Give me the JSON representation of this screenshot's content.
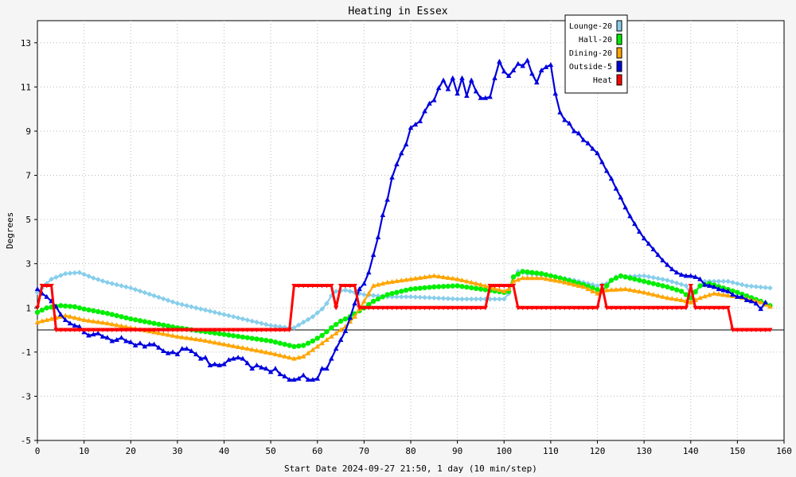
{
  "chart_data": {
    "type": "line",
    "title": "Heating in Essex",
    "xlabel": "Start Date 2024-09-27 21:50, 1 day (10 min/step)",
    "ylabel": "Degrees",
    "xlim": [
      0,
      160
    ],
    "ylim": [
      -5,
      14
    ],
    "x_ticks": [
      0,
      10,
      20,
      30,
      40,
      50,
      60,
      70,
      80,
      90,
      100,
      110,
      120,
      130,
      140,
      150,
      160
    ],
    "y_ticks": [
      -5,
      -3,
      -1,
      1,
      3,
      5,
      7,
      9,
      11,
      13
    ],
    "grid": true,
    "legend_position": "top-right",
    "baseline_y": 0,
    "series": [
      {
        "name": "Lounge-20",
        "color": "#87ceeb",
        "marker": "diamond",
        "points": [
          [
            0,
            1.7
          ],
          [
            3,
            2.3
          ],
          [
            6,
            2.55
          ],
          [
            9,
            2.6
          ],
          [
            12,
            2.35
          ],
          [
            15,
            2.15
          ],
          [
            20,
            1.9
          ],
          [
            25,
            1.55
          ],
          [
            30,
            1.2
          ],
          [
            35,
            0.95
          ],
          [
            40,
            0.7
          ],
          [
            45,
            0.45
          ],
          [
            50,
            0.2
          ],
          [
            54,
            0.1
          ],
          [
            55,
            0.1
          ],
          [
            57,
            0.35
          ],
          [
            59,
            0.6
          ],
          [
            61,
            0.95
          ],
          [
            62,
            1.2
          ],
          [
            63,
            1.55
          ],
          [
            64,
            1.75
          ],
          [
            66,
            1.8
          ],
          [
            68,
            1.7
          ],
          [
            70,
            1.6
          ],
          [
            75,
            1.5
          ],
          [
            80,
            1.5
          ],
          [
            85,
            1.45
          ],
          [
            90,
            1.4
          ],
          [
            95,
            1.4
          ],
          [
            100,
            1.4
          ],
          [
            101,
            1.65
          ],
          [
            102,
            2.35
          ],
          [
            103,
            2.65
          ],
          [
            105,
            2.55
          ],
          [
            110,
            2.45
          ],
          [
            115,
            2.25
          ],
          [
            120,
            2.0
          ],
          [
            122,
            2.1
          ],
          [
            124,
            2.4
          ],
          [
            130,
            2.45
          ],
          [
            135,
            2.25
          ],
          [
            139,
            2.0
          ],
          [
            140,
            1.55
          ],
          [
            143,
            2.2
          ],
          [
            148,
            2.2
          ],
          [
            152,
            2.0
          ],
          [
            157,
            1.9
          ]
        ]
      },
      {
        "name": "Hall-20",
        "color": "#00ee00",
        "marker": "circle",
        "points": [
          [
            0,
            0.8
          ],
          [
            2,
            1.0
          ],
          [
            5,
            1.1
          ],
          [
            8,
            1.05
          ],
          [
            10,
            0.95
          ],
          [
            15,
            0.75
          ],
          [
            20,
            0.5
          ],
          [
            25,
            0.3
          ],
          [
            30,
            0.1
          ],
          [
            35,
            -0.05
          ],
          [
            40,
            -0.2
          ],
          [
            45,
            -0.35
          ],
          [
            50,
            -0.5
          ],
          [
            53,
            -0.65
          ],
          [
            55,
            -0.75
          ],
          [
            57,
            -0.7
          ],
          [
            59,
            -0.5
          ],
          [
            61,
            -0.25
          ],
          [
            63,
            0.1
          ],
          [
            65,
            0.4
          ],
          [
            67,
            0.6
          ],
          [
            70,
            1.0
          ],
          [
            72,
            1.3
          ],
          [
            75,
            1.6
          ],
          [
            80,
            1.85
          ],
          [
            85,
            1.95
          ],
          [
            90,
            2.0
          ],
          [
            95,
            1.85
          ],
          [
            100,
            1.7
          ],
          [
            101,
            1.75
          ],
          [
            102,
            2.4
          ],
          [
            104,
            2.65
          ],
          [
            108,
            2.55
          ],
          [
            112,
            2.35
          ],
          [
            117,
            2.05
          ],
          [
            121,
            1.75
          ],
          [
            123,
            2.25
          ],
          [
            125,
            2.45
          ],
          [
            130,
            2.2
          ],
          [
            135,
            1.95
          ],
          [
            138,
            1.75
          ],
          [
            140,
            1.45
          ],
          [
            142,
            2.0
          ],
          [
            144,
            2.1
          ],
          [
            150,
            1.7
          ],
          [
            155,
            1.3
          ],
          [
            157,
            1.1
          ]
        ]
      },
      {
        "name": "Dining-20",
        "color": "#ffa500",
        "marker": "triangle-up",
        "points": [
          [
            0,
            0.35
          ],
          [
            3,
            0.5
          ],
          [
            6,
            0.65
          ],
          [
            10,
            0.45
          ],
          [
            15,
            0.3
          ],
          [
            20,
            0.1
          ],
          [
            25,
            -0.1
          ],
          [
            30,
            -0.3
          ],
          [
            35,
            -0.45
          ],
          [
            40,
            -0.65
          ],
          [
            45,
            -0.85
          ],
          [
            50,
            -1.05
          ],
          [
            53,
            -1.2
          ],
          [
            55,
            -1.3
          ],
          [
            57,
            -1.2
          ],
          [
            60,
            -0.75
          ],
          [
            63,
            -0.3
          ],
          [
            66,
            0.15
          ],
          [
            68,
            0.6
          ],
          [
            70,
            1.3
          ],
          [
            72,
            2.0
          ],
          [
            75,
            2.15
          ],
          [
            80,
            2.3
          ],
          [
            85,
            2.45
          ],
          [
            90,
            2.3
          ],
          [
            95,
            2.05
          ],
          [
            100,
            1.75
          ],
          [
            101,
            1.85
          ],
          [
            102,
            2.2
          ],
          [
            104,
            2.35
          ],
          [
            108,
            2.35
          ],
          [
            112,
            2.2
          ],
          [
            117,
            1.95
          ],
          [
            120,
            1.65
          ],
          [
            122,
            1.8
          ],
          [
            126,
            1.85
          ],
          [
            130,
            1.7
          ],
          [
            135,
            1.45
          ],
          [
            138,
            1.35
          ],
          [
            140,
            1.25
          ],
          [
            142,
            1.45
          ],
          [
            145,
            1.65
          ],
          [
            150,
            1.5
          ],
          [
            155,
            1.25
          ],
          [
            157,
            1.05
          ]
        ]
      },
      {
        "name": "Outside-5",
        "color": "#0000dd",
        "marker": "triangle-up",
        "points": [
          [
            0,
            1.85
          ],
          [
            1,
            1.65
          ],
          [
            2,
            1.5
          ],
          [
            3,
            1.3
          ],
          [
            4,
            1.05
          ],
          [
            5,
            0.7
          ],
          [
            6,
            0.45
          ],
          [
            7,
            0.3
          ],
          [
            8,
            0.2
          ],
          [
            9,
            0.15
          ],
          [
            10,
            -0.1
          ],
          [
            11,
            -0.25
          ],
          [
            12,
            -0.2
          ],
          [
            13,
            -0.15
          ],
          [
            14,
            -0.3
          ],
          [
            15,
            -0.35
          ],
          [
            16,
            -0.5
          ],
          [
            17,
            -0.45
          ],
          [
            18,
            -0.35
          ],
          [
            19,
            -0.5
          ],
          [
            20,
            -0.55
          ],
          [
            21,
            -0.7
          ],
          [
            22,
            -0.6
          ],
          [
            23,
            -0.75
          ],
          [
            24,
            -0.65
          ],
          [
            25,
            -0.65
          ],
          [
            26,
            -0.8
          ],
          [
            27,
            -0.95
          ],
          [
            28,
            -1.05
          ],
          [
            29,
            -1.0
          ],
          [
            30,
            -1.1
          ],
          [
            31,
            -0.85
          ],
          [
            32,
            -0.85
          ],
          [
            33,
            -0.95
          ],
          [
            34,
            -1.1
          ],
          [
            35,
            -1.3
          ],
          [
            36,
            -1.25
          ],
          [
            37,
            -1.6
          ],
          [
            38,
            -1.55
          ],
          [
            39,
            -1.6
          ],
          [
            40,
            -1.55
          ],
          [
            41,
            -1.35
          ],
          [
            42,
            -1.3
          ],
          [
            43,
            -1.25
          ],
          [
            44,
            -1.3
          ],
          [
            45,
            -1.5
          ],
          [
            46,
            -1.75
          ],
          [
            47,
            -1.6
          ],
          [
            48,
            -1.7
          ],
          [
            49,
            -1.75
          ],
          [
            50,
            -1.9
          ],
          [
            51,
            -1.75
          ],
          [
            52,
            -2.0
          ],
          [
            53,
            -2.1
          ],
          [
            54,
            -2.25
          ],
          [
            55,
            -2.25
          ],
          [
            56,
            -2.2
          ],
          [
            57,
            -2.05
          ],
          [
            58,
            -2.25
          ],
          [
            59,
            -2.25
          ],
          [
            60,
            -2.2
          ],
          [
            61,
            -1.75
          ],
          [
            62,
            -1.75
          ],
          [
            63,
            -1.3
          ],
          [
            64,
            -0.85
          ],
          [
            65,
            -0.45
          ],
          [
            66,
            -0.05
          ],
          [
            67,
            0.55
          ],
          [
            68,
            1.2
          ],
          [
            69,
            1.85
          ],
          [
            70,
            2.1
          ],
          [
            71,
            2.6
          ],
          [
            72,
            3.4
          ],
          [
            73,
            4.2
          ],
          [
            74,
            5.2
          ],
          [
            75,
            5.9
          ],
          [
            76,
            6.9
          ],
          [
            77,
            7.5
          ],
          [
            78,
            8.0
          ],
          [
            79,
            8.4
          ],
          [
            80,
            9.15
          ],
          [
            81,
            9.3
          ],
          [
            82,
            9.45
          ],
          [
            83,
            9.9
          ],
          [
            84,
            10.25
          ],
          [
            85,
            10.4
          ],
          [
            86,
            10.95
          ],
          [
            87,
            11.3
          ],
          [
            88,
            10.9
          ],
          [
            89,
            11.4
          ],
          [
            90,
            10.7
          ],
          [
            91,
            11.4
          ],
          [
            92,
            10.6
          ],
          [
            93,
            11.3
          ],
          [
            94,
            10.8
          ],
          [
            95,
            10.5
          ],
          [
            96,
            10.5
          ],
          [
            97,
            10.55
          ],
          [
            98,
            11.4
          ],
          [
            99,
            12.15
          ],
          [
            100,
            11.7
          ],
          [
            101,
            11.5
          ],
          [
            102,
            11.75
          ],
          [
            103,
            12.05
          ],
          [
            104,
            11.95
          ],
          [
            105,
            12.2
          ],
          [
            106,
            11.6
          ],
          [
            107,
            11.2
          ],
          [
            108,
            11.75
          ],
          [
            109,
            11.9
          ],
          [
            110,
            12.0
          ],
          [
            111,
            10.7
          ],
          [
            112,
            9.85
          ],
          [
            113,
            9.5
          ],
          [
            114,
            9.35
          ],
          [
            115,
            9.0
          ],
          [
            116,
            8.9
          ],
          [
            117,
            8.6
          ],
          [
            118,
            8.45
          ],
          [
            119,
            8.2
          ],
          [
            120,
            8.0
          ],
          [
            121,
            7.6
          ],
          [
            122,
            7.2
          ],
          [
            123,
            6.85
          ],
          [
            124,
            6.4
          ],
          [
            125,
            6.0
          ],
          [
            126,
            5.55
          ],
          [
            127,
            5.15
          ],
          [
            128,
            4.8
          ],
          [
            129,
            4.45
          ],
          [
            130,
            4.15
          ],
          [
            131,
            3.9
          ],
          [
            132,
            3.65
          ],
          [
            133,
            3.4
          ],
          [
            134,
            3.15
          ],
          [
            135,
            2.95
          ],
          [
            136,
            2.75
          ],
          [
            137,
            2.6
          ],
          [
            138,
            2.5
          ],
          [
            139,
            2.45
          ],
          [
            140,
            2.45
          ],
          [
            141,
            2.4
          ],
          [
            142,
            2.3
          ],
          [
            143,
            2.05
          ],
          [
            144,
            2.0
          ],
          [
            145,
            1.95
          ],
          [
            146,
            1.85
          ],
          [
            147,
            1.8
          ],
          [
            148,
            1.75
          ],
          [
            149,
            1.6
          ],
          [
            150,
            1.5
          ],
          [
            151,
            1.5
          ],
          [
            152,
            1.35
          ],
          [
            153,
            1.3
          ],
          [
            154,
            1.2
          ],
          [
            155,
            0.95
          ],
          [
            156,
            1.25
          ]
        ]
      },
      {
        "name": "Heat",
        "color": "#ff0000",
        "marker": "triangle-down",
        "step": true,
        "points": [
          [
            0,
            1
          ],
          [
            1,
            2
          ],
          [
            3,
            2
          ],
          [
            4,
            0
          ],
          [
            54,
            0
          ],
          [
            55,
            2
          ],
          [
            63,
            2
          ],
          [
            64,
            1
          ],
          [
            65,
            2
          ],
          [
            68,
            2
          ],
          [
            69,
            1
          ],
          [
            96,
            1
          ],
          [
            97,
            2
          ],
          [
            102,
            2
          ],
          [
            103,
            1
          ],
          [
            120,
            1
          ],
          [
            121,
            2
          ],
          [
            122,
            1
          ],
          [
            139,
            1
          ],
          [
            140,
            2
          ],
          [
            141,
            1
          ],
          [
            148,
            1
          ],
          [
            149,
            0
          ],
          [
            157,
            0
          ]
        ]
      }
    ]
  }
}
